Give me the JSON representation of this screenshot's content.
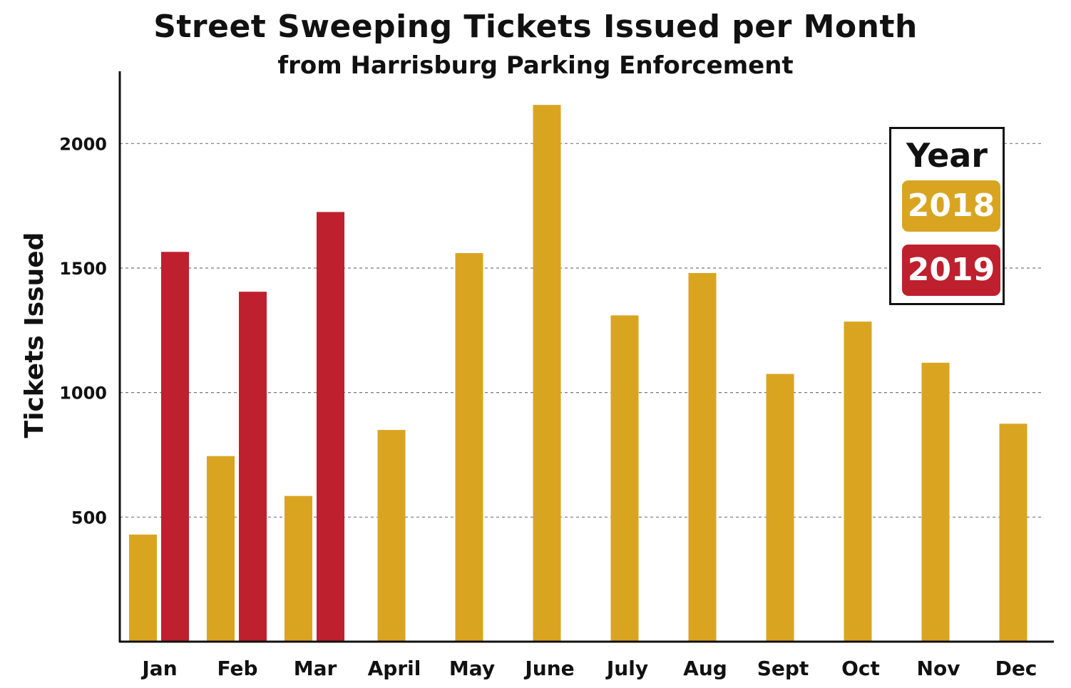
{
  "chart_data": {
    "type": "bar",
    "title": "Street Sweeping Tickets Issued per Month",
    "subtitle": "from Harrisburg Parking Enforcement",
    "xlabel": "",
    "ylabel": "Tickets Issued",
    "categories": [
      "Jan",
      "Feb",
      "Mar",
      "April",
      "May",
      "June",
      "July",
      "Aug",
      "Sept",
      "Oct",
      "Nov",
      "Dec"
    ],
    "series": [
      {
        "name": "2018",
        "color": "#D9A521",
        "values": [
          430,
          745,
          585,
          850,
          1560,
          2155,
          1310,
          1480,
          1075,
          1285,
          1120,
          875
        ]
      },
      {
        "name": "2019",
        "color": "#BE202E",
        "values": [
          1565,
          1405,
          1725,
          null,
          null,
          null,
          null,
          null,
          null,
          null,
          null,
          null
        ]
      }
    ],
    "yticks": [
      500,
      1000,
      1500,
      2000
    ],
    "ylim": [
      0,
      2290
    ],
    "grid": "horizontal dashed",
    "legend": {
      "title": "Year",
      "position": "top-right"
    }
  }
}
